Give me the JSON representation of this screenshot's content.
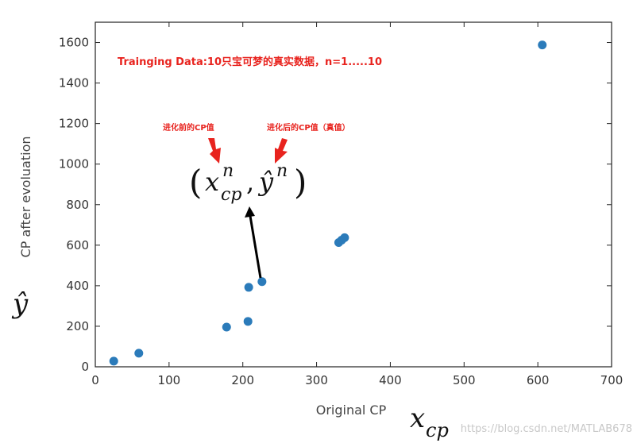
{
  "chart_data": {
    "type": "scatter",
    "xlabel": "Original CP",
    "ylabel": "CP after evoluation",
    "xlim": [
      0,
      700
    ],
    "ylim": [
      0,
      1700
    ],
    "xticks": [
      0,
      100,
      200,
      300,
      400,
      500,
      600,
      700
    ],
    "yticks": [
      0,
      200,
      400,
      600,
      800,
      1000,
      1200,
      1400,
      1600
    ],
    "x": [
      25,
      59,
      178,
      207,
      208,
      226,
      330,
      334,
      338,
      606
    ],
    "y": [
      28,
      67,
      196,
      224,
      392,
      420,
      613,
      625,
      637,
      1588
    ],
    "color": "#2b7bba",
    "grid": false
  },
  "annotations": {
    "training_note": "Trainging Data:10只宝可梦的真实数据，n=1.....10",
    "before_note": "进化前的CP值",
    "after_note": "进化后的CP值（真值）",
    "pair_symbol": {
      "open_paren": "(",
      "x": "x",
      "x_sup": "n",
      "x_sub": "cp",
      "comma": ",",
      "y_hat": "ŷ",
      "y_sup": "n",
      "close_paren": ")"
    },
    "y_hat_label": "ŷ",
    "x_cp_label": {
      "base": "x",
      "sub": "cp"
    }
  },
  "watermark": "https://blog.csdn.net/MATLAB678",
  "colors": {
    "annotation": "#e8231e",
    "marker": "#2b7bba"
  }
}
